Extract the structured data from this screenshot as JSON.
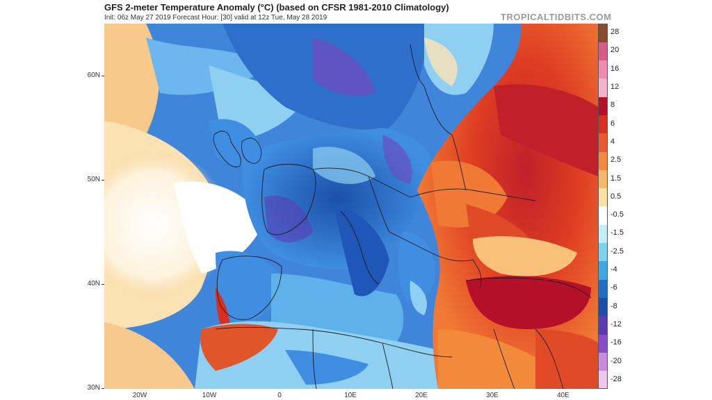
{
  "header": {
    "title": "GFS 2-meter Temperature Anomaly (°C) (based on CFSR 1981-2010 Climatology)",
    "subtitle": "Init: 06z May 27 2019   Forecast Hour: [30]   valid at 12z Tue, May 28 2019",
    "brand": "TROPICALTIDBITS.COM"
  },
  "axes": {
    "lat_labels": [
      "60N",
      "50N",
      "40N",
      "30N"
    ],
    "lon_labels": [
      "20W",
      "10W",
      "0",
      "10E",
      "20E",
      "30E",
      "40E"
    ]
  },
  "colorbar": {
    "labels": [
      "28",
      "20",
      "16",
      "12",
      "8",
      "6",
      "4",
      "2.5",
      "1.5",
      "0.5",
      "-0.5",
      "-1.5",
      "-2.5",
      "-4",
      "-6",
      "-8",
      "-12",
      "-16",
      "-20",
      "-28"
    ],
    "colors": [
      "#8b4a2b",
      "#d85a8a",
      "#f08ab0",
      "#f4b3cc",
      "#b5102a",
      "#d8301f",
      "#eb5a2c",
      "#f58a3e",
      "#f8b868",
      "#fbe0a5",
      "#ffffff",
      "#c3ecf6",
      "#7dd2ef",
      "#3ea8e2",
      "#1f6fc4",
      "#1b4fa8",
      "#5a3cb0",
      "#8a4cc8",
      "#c98ae0",
      "#f0c6f0"
    ]
  },
  "map_colors": {
    "ocean_base": "#3d7fd6",
    "cold_dark": "#1f57b8",
    "cold_mid": "#3f8ee2",
    "cold_light": "#8fd0f2",
    "neutral": "#ffffff",
    "warm_light": "#fbd9a0",
    "warm_mid": "#f28a3c",
    "warm_dark": "#d8301f",
    "very_warm": "#b5102a",
    "purple": "#6a4fc0",
    "boundary": "#1a1a1a"
  }
}
